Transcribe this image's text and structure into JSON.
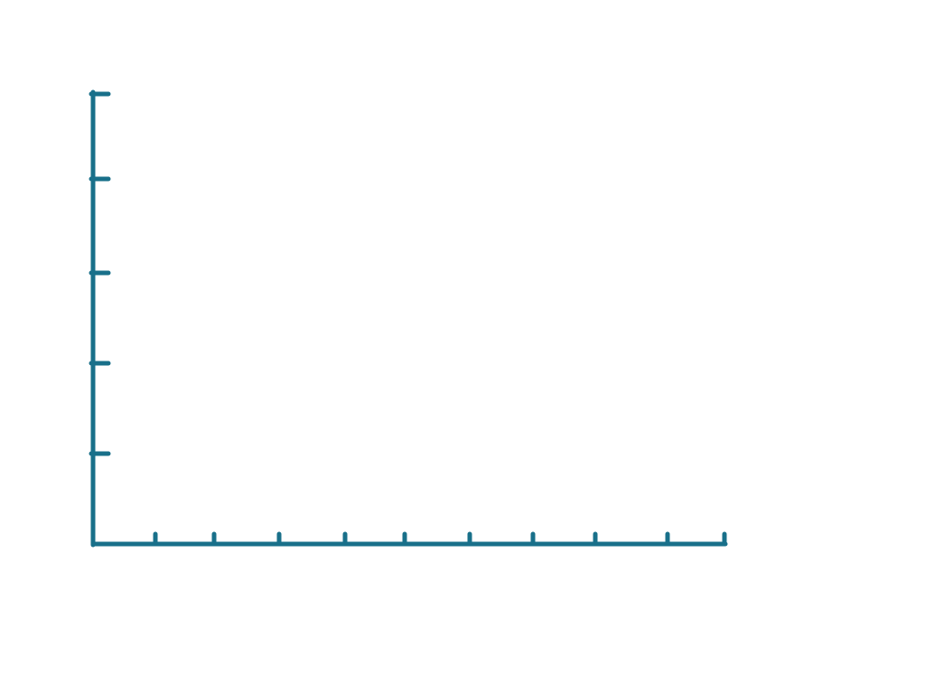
{
  "colors": {
    "axis": "#19708a",
    "background": "#ffffff"
  },
  "chart_data": {
    "type": "line",
    "title": "",
    "xlabel": "",
    "ylabel": "",
    "series": [],
    "x_tick_count": 10,
    "y_tick_count": 5,
    "grid": false
  }
}
